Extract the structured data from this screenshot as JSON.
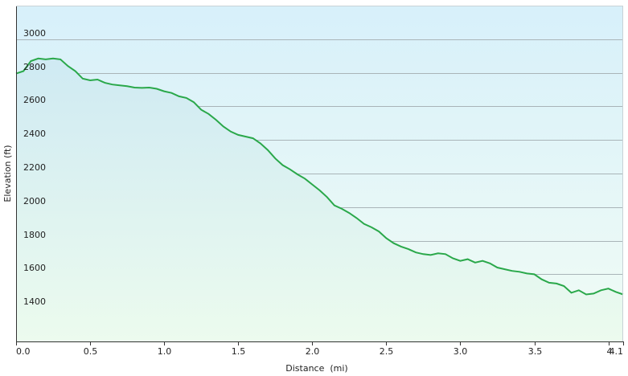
{
  "chart_data": {
    "type": "area",
    "title": "",
    "xlabel": "Distance  (mi)",
    "ylabel": "Elevation (ft)",
    "xlim": [
      0,
      4.1
    ],
    "ylim": [
      1200,
      3200
    ],
    "x_ticks": [
      0.0,
      0.5,
      1.0,
      1.5,
      2.0,
      2.5,
      3.0,
      3.5,
      4.0,
      4.1
    ],
    "x_tick_labels": [
      "0.0",
      "0.5",
      "1.0",
      "1.5",
      "2.0",
      "2.5",
      "3.0",
      "3.5",
      "4",
      "4.1"
    ],
    "y_ticks": [
      1400,
      1600,
      1800,
      2000,
      2200,
      2400,
      2600,
      2800,
      3000
    ],
    "y_tick_labels": [
      "1400",
      "1600",
      "1800",
      "2000",
      "2200",
      "2400",
      "2600",
      "2800",
      "3000"
    ],
    "grid": "horizontal",
    "colors": {
      "line": "#2aa84a",
      "fill_top": "#cfeaf3",
      "fill_bottom": "#ecfbee",
      "bg_top": "#d7f0fa",
      "bg_bottom": "#f1fcf5",
      "grid": "#a9b4b8",
      "axis": "#333333"
    },
    "series": [
      {
        "x": [
          0.0,
          0.05,
          0.1,
          0.15,
          0.2,
          0.25,
          0.3,
          0.35,
          0.4,
          0.45,
          0.5,
          0.55,
          0.6,
          0.65,
          0.7,
          0.75,
          0.8,
          0.85,
          0.9,
          0.95,
          1.0,
          1.05,
          1.1,
          1.15,
          1.2,
          1.25,
          1.3,
          1.35,
          1.4,
          1.45,
          1.5,
          1.55,
          1.6,
          1.65,
          1.7,
          1.75,
          1.8,
          1.85,
          1.9,
          1.95,
          2.0,
          2.05,
          2.1,
          2.15,
          2.2,
          2.25,
          2.3,
          2.35,
          2.4,
          2.45,
          2.5,
          2.55,
          2.6,
          2.65,
          2.7,
          2.75,
          2.8,
          2.85,
          2.9,
          2.95,
          3.0,
          3.05,
          3.1,
          3.15,
          3.2,
          3.25,
          3.3,
          3.35,
          3.4,
          3.45,
          3.5,
          3.55,
          3.6,
          3.65,
          3.7,
          3.75,
          3.8,
          3.85,
          3.9,
          3.95,
          4.0,
          4.05,
          4.1
        ],
        "values": [
          2795,
          2810,
          2870,
          2885,
          2880,
          2885,
          2880,
          2840,
          2810,
          2765,
          2755,
          2760,
          2740,
          2730,
          2725,
          2720,
          2712,
          2710,
          2712,
          2705,
          2690,
          2680,
          2660,
          2650,
          2625,
          2580,
          2555,
          2520,
          2480,
          2450,
          2430,
          2420,
          2410,
          2380,
          2340,
          2290,
          2250,
          2225,
          2195,
          2170,
          2135,
          2100,
          2060,
          2010,
          1990,
          1965,
          1935,
          1900,
          1880,
          1855,
          1815,
          1785,
          1765,
          1750,
          1730,
          1720,
          1715,
          1725,
          1720,
          1695,
          1680,
          1690,
          1670,
          1680,
          1665,
          1640,
          1630,
          1620,
          1615,
          1605,
          1600,
          1570,
          1550,
          1545,
          1530,
          1490,
          1505,
          1480,
          1485,
          1505,
          1515,
          1495,
          1480
        ]
      }
    ]
  }
}
